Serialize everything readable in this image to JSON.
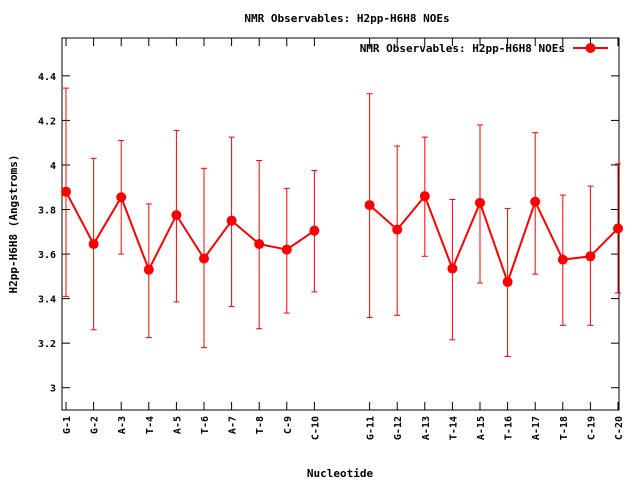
{
  "chart_data": {
    "type": "line",
    "title": "NMR Observables: H2pp-H6H8 NOEs",
    "xlabel": "Nucleotide",
    "ylabel": "H2pp-H6H8 (Angstroms)",
    "ylim": [
      2.9,
      4.57
    ],
    "yticks": [
      "3",
      "3.2",
      "3.4",
      "3.6",
      "3.8",
      "4",
      "4.2",
      "4.4"
    ],
    "legend": "top-right",
    "color": "#ff0000",
    "categories": [
      "G-1",
      "G-2",
      "A-3",
      "T-4",
      "A-5",
      "T-6",
      "A-7",
      "T-8",
      "C-9",
      "C-10",
      "",
      "G-11",
      "G-12",
      "A-13",
      "T-14",
      "A-15",
      "T-16",
      "A-17",
      "T-18",
      "C-19",
      "C-20"
    ],
    "series": [
      {
        "name": "NMR Observables: H2pp-H6H8 NOEs",
        "values": [
          3.88,
          3.645,
          3.855,
          3.53,
          3.775,
          3.58,
          3.75,
          3.645,
          3.62,
          3.705,
          null,
          3.82,
          3.71,
          3.86,
          3.535,
          3.83,
          3.475,
          3.835,
          3.575,
          3.59,
          3.715
        ],
        "err_low": [
          3.41,
          3.26,
          3.6,
          3.225,
          3.385,
          3.18,
          3.365,
          3.265,
          3.335,
          3.43,
          null,
          3.315,
          3.325,
          3.59,
          3.215,
          3.47,
          3.14,
          3.51,
          3.28,
          3.28,
          3.425
        ],
        "err_high": [
          4.345,
          4.03,
          4.11,
          3.825,
          4.155,
          3.985,
          4.125,
          4.02,
          3.895,
          3.975,
          null,
          4.32,
          4.085,
          4.125,
          3.845,
          4.18,
          3.805,
          4.145,
          3.865,
          3.905,
          4.005
        ]
      }
    ]
  }
}
